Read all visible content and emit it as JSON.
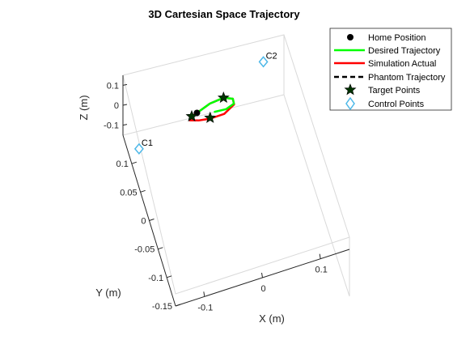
{
  "chart_data": {
    "type": "line",
    "projection": "3d",
    "title": "3D Cartesian Space Trajectory",
    "xlabel": "X (m)",
    "ylabel": "Y (m)",
    "zlabel": "Z (m)",
    "xlim": [
      -0.15,
      0.15
    ],
    "ylim": [
      -0.15,
      0.15
    ],
    "zlim": [
      -0.15,
      0.15
    ],
    "x_ticks": [
      "-0.1",
      "0",
      "0.1"
    ],
    "x_tick_values": [
      -0.1,
      0,
      0.1
    ],
    "y_ticks": [
      "0.1",
      "0.05",
      "0",
      "-0.05",
      "-0.1",
      "-0.15"
    ],
    "y_tick_values": [
      0.1,
      0.05,
      0,
      -0.05,
      -0.1,
      -0.15
    ],
    "z_ticks": [
      "0.1",
      "0",
      "-0.1"
    ],
    "z_tick_values": [
      0.1,
      0,
      -0.1
    ],
    "grid": false,
    "box": true,
    "legend_position": "top-right",
    "home": {
      "label": "Home Position",
      "x": -0.03,
      "y": 0.07,
      "z": 0,
      "color": "#000000"
    },
    "series": [
      {
        "name": "Desired Trajectory",
        "color": "#00ff00",
        "style": "solid",
        "x": [
          -0.03,
          -0.005,
          0.02,
          0.035,
          0.035,
          0.02,
          0.0
        ],
        "y": [
          0.07,
          0.082,
          0.085,
          0.075,
          0.062,
          0.055,
          0.058
        ],
        "z": [
          0,
          0,
          0,
          0,
          0,
          0,
          0
        ]
      },
      {
        "name": "Simulation Actual",
        "color": "#ff0000",
        "style": "solid",
        "x": [
          -0.03,
          -0.005,
          0.02,
          0.035,
          0.035,
          0.015,
          -0.01,
          -0.03,
          -0.045,
          -0.04,
          -0.03
        ],
        "y": [
          0.07,
          0.082,
          0.085,
          0.075,
          0.06,
          0.045,
          0.045,
          0.05,
          0.058,
          0.066,
          0.07
        ],
        "z": [
          0,
          0,
          0,
          0,
          0,
          0,
          0,
          0,
          0,
          0,
          0
        ]
      },
      {
        "name": "Phantom Trajectory",
        "color": "#000000",
        "style": "dashed",
        "x": [],
        "y": [],
        "z": []
      }
    ],
    "target_points": {
      "label": "Target Points",
      "color": "#003300",
      "points": [
        {
          "x": -0.04,
          "y": 0.066,
          "z": 0
        },
        {
          "x": -0.01,
          "y": 0.047,
          "z": 0
        },
        {
          "x": 0.02,
          "y": 0.085,
          "z": 0
        }
      ]
    },
    "control_points": {
      "label": "Control Points",
      "color": "#4db8e8",
      "points": [
        {
          "name": "C1",
          "x": -0.14,
          "y": 0.03,
          "z": 0
        },
        {
          "name": "C2",
          "x": 0.1,
          "y": 0.14,
          "z": 0
        }
      ]
    }
  }
}
